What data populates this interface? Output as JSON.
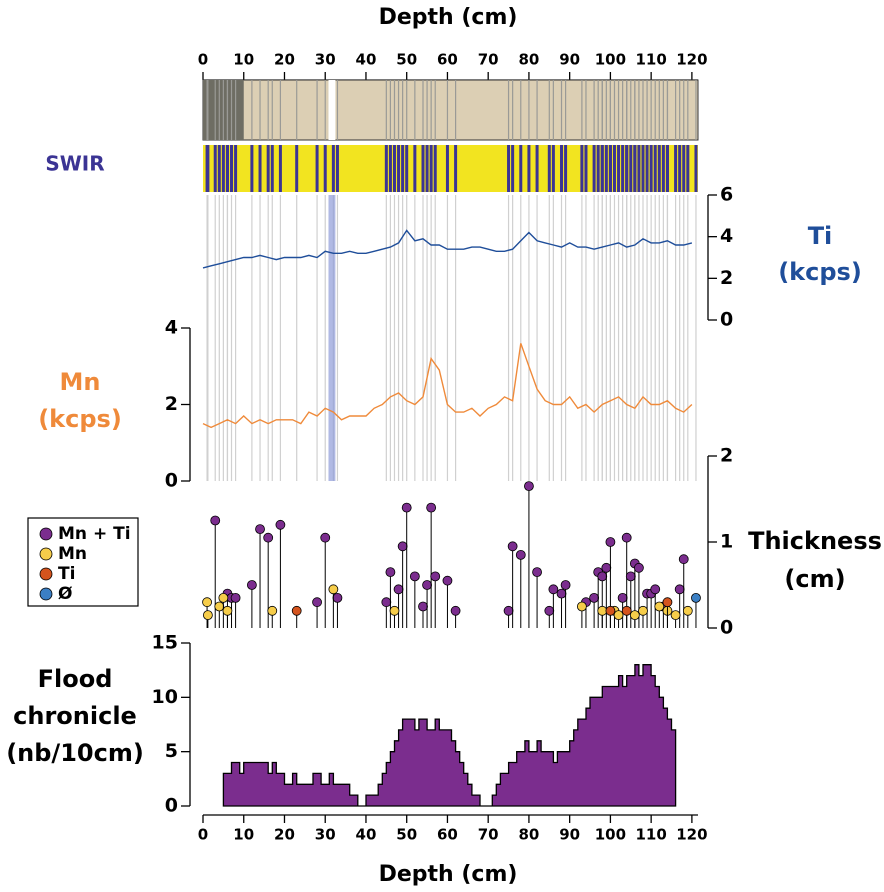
{
  "chart_data": [
    {
      "type": "core",
      "title": "Depth (cm)",
      "xlim": [
        0,
        121.5
      ],
      "xticks": [
        0,
        10,
        20,
        30,
        40,
        50,
        60,
        70,
        80,
        90,
        100,
        110,
        120
      ],
      "dark": [
        0,
        10
      ],
      "gap": [
        30.8,
        32.5
      ],
      "color": "#dccfb4",
      "dark_color": "#6e6d63",
      "line_color": "#9a9a96"
    },
    {
      "type": "swir",
      "label": [
        "SWIR"
      ],
      "color": "#f2e420",
      "stripe_color": "#3b3494"
    },
    {
      "type": "line",
      "label": [
        "Ti",
        "(kcps)"
      ],
      "side": "right",
      "color": "#1f4e9a",
      "x": [
        0,
        2,
        4,
        6,
        8,
        10,
        12,
        14,
        16,
        18,
        20,
        22,
        24,
        26,
        28,
        30,
        32,
        34,
        36,
        38,
        40,
        42,
        44,
        46,
        48,
        50,
        52,
        54,
        56,
        58,
        60,
        62,
        64,
        66,
        68,
        70,
        72,
        74,
        76,
        78,
        80,
        82,
        84,
        86,
        88,
        90,
        92,
        94,
        96,
        98,
        100,
        102,
        104,
        106,
        108,
        110,
        112,
        114,
        116,
        118,
        120
      ],
      "values": [
        2.5,
        2.6,
        2.7,
        2.8,
        2.9,
        3.0,
        3.0,
        3.1,
        3.0,
        2.9,
        3.0,
        3.0,
        3.0,
        3.1,
        3.0,
        3.3,
        3.2,
        3.2,
        3.3,
        3.2,
        3.2,
        3.3,
        3.4,
        3.5,
        3.7,
        4.3,
        3.8,
        3.9,
        3.6,
        3.6,
        3.4,
        3.4,
        3.4,
        3.5,
        3.5,
        3.4,
        3.3,
        3.3,
        3.4,
        3.8,
        4.2,
        3.8,
        3.7,
        3.6,
        3.5,
        3.7,
        3.5,
        3.5,
        3.4,
        3.5,
        3.6,
        3.7,
        3.5,
        3.6,
        3.9,
        3.7,
        3.7,
        3.8,
        3.6,
        3.6,
        3.7
      ],
      "ylim": [
        0,
        6
      ],
      "yticks": [
        0,
        2,
        4,
        6
      ]
    },
    {
      "type": "line",
      "label": [
        "Mn",
        "(kcps)"
      ],
      "side": "left",
      "color": "#ef8a3a",
      "x": [
        0,
        2,
        4,
        6,
        8,
        10,
        12,
        14,
        16,
        18,
        20,
        22,
        24,
        26,
        28,
        30,
        32,
        34,
        36,
        38,
        40,
        42,
        44,
        46,
        48,
        50,
        52,
        54,
        56,
        58,
        60,
        62,
        64,
        66,
        68,
        70,
        72,
        74,
        76,
        78,
        80,
        82,
        84,
        86,
        88,
        90,
        92,
        94,
        96,
        98,
        100,
        102,
        104,
        106,
        108,
        110,
        112,
        114,
        116,
        118,
        120
      ],
      "values": [
        1.5,
        1.4,
        1.5,
        1.6,
        1.5,
        1.7,
        1.5,
        1.6,
        1.5,
        1.6,
        1.6,
        1.6,
        1.5,
        1.8,
        1.7,
        1.9,
        1.8,
        1.6,
        1.7,
        1.7,
        1.7,
        1.9,
        2.0,
        2.2,
        2.3,
        2.1,
        2.0,
        2.2,
        3.2,
        2.9,
        2.0,
        1.8,
        1.8,
        1.9,
        1.7,
        1.9,
        2.0,
        2.2,
        2.1,
        3.6,
        3.0,
        2.4,
        2.1,
        2.0,
        2.0,
        2.2,
        1.9,
        2.0,
        1.8,
        2.0,
        2.1,
        2.2,
        2.0,
        1.9,
        2.2,
        2.0,
        2.0,
        2.1,
        1.9,
        1.8,
        2.0
      ],
      "ylim": [
        0,
        4
      ],
      "yticks": [
        0,
        2,
        4
      ]
    },
    {
      "type": "stem",
      "label": [
        "Thickness",
        "(cm)"
      ],
      "side": "right",
      "ylim": [
        0,
        2
      ],
      "yticks": [
        0,
        1,
        2
      ],
      "series": [
        {
          "name": "Mn + Ti",
          "color": "#7b2d8e",
          "x": [
            3,
            6,
            7,
            8,
            12,
            14,
            16,
            19,
            28,
            30,
            33,
            45,
            46,
            48,
            49,
            50,
            52,
            54,
            55,
            56,
            57,
            60,
            62,
            75,
            76,
            78,
            80,
            82,
            85,
            86,
            88,
            89,
            94,
            96,
            97,
            98,
            99,
            100,
            103,
            104,
            105,
            106,
            107,
            109,
            110,
            111,
            113,
            117,
            118
          ],
          "values": [
            1.25,
            0.4,
            0.35,
            0.35,
            0.5,
            1.15,
            1.05,
            1.2,
            0.3,
            1.05,
            0.35,
            0.3,
            0.65,
            0.45,
            0.95,
            1.4,
            0.6,
            0.25,
            0.5,
            1.4,
            0.6,
            0.55,
            0.2,
            0.2,
            0.95,
            0.85,
            1.65,
            0.65,
            0.2,
            0.45,
            0.4,
            0.5,
            0.3,
            0.35,
            0.65,
            0.6,
            0.7,
            1.0,
            0.35,
            1.05,
            0.6,
            0.75,
            0.7,
            0.4,
            0.4,
            0.45,
            0.25,
            0.45,
            0.8
          ]
        },
        {
          "name": "Mn",
          "color": "#f6cd4a",
          "x": [
            1,
            1.2,
            4,
            5,
            6,
            17,
            32,
            47,
            93,
            98,
            101,
            102,
            106,
            108,
            112,
            114,
            116,
            119
          ],
          "values": [
            0.3,
            0.15,
            0.25,
            0.35,
            0.2,
            0.2,
            0.45,
            0.2,
            0.25,
            0.2,
            0.2,
            0.15,
            0.15,
            0.2,
            0.25,
            0.2,
            0.15,
            0.2
          ]
        },
        {
          "name": "Ti",
          "color": "#d4541e",
          "x": [
            23,
            100,
            104,
            114
          ],
          "values": [
            0.2,
            0.2,
            0.2,
            0.3
          ]
        },
        {
          "name": "Ø",
          "color": "#3b7fc4",
          "x": [
            121
          ],
          "values": [
            0.35
          ]
        }
      ]
    },
    {
      "type": "step",
      "label": [
        "Flood",
        "chronicle",
        "(nb/10cm)"
      ],
      "side": "left",
      "color": "#7b2d8e",
      "title": "Depth (cm)",
      "xlim": [
        0,
        121.5
      ],
      "xticks": [
        0,
        10,
        20,
        30,
        40,
        50,
        60,
        70,
        80,
        90,
        100,
        110,
        120
      ],
      "x": [
        5,
        6,
        7,
        8,
        9,
        10,
        11,
        12,
        13,
        14,
        15,
        16,
        17,
        18,
        19,
        20,
        21,
        22,
        23,
        24,
        25,
        26,
        27,
        28,
        29,
        30,
        31,
        32,
        33,
        34,
        35,
        36,
        37,
        38,
        39,
        40,
        41,
        42,
        43,
        44,
        45,
        46,
        47,
        48,
        49,
        50,
        51,
        52,
        53,
        54,
        55,
        56,
        57,
        58,
        59,
        60,
        61,
        62,
        63,
        64,
        65,
        66,
        67,
        68,
        69,
        70,
        71,
        72,
        73,
        74,
        75,
        76,
        77,
        78,
        79,
        80,
        81,
        82,
        83,
        84,
        85,
        86,
        87,
        88,
        89,
        90,
        91,
        92,
        93,
        94,
        95,
        96,
        97,
        98,
        99,
        100,
        101,
        102,
        103,
        104,
        105,
        106,
        107,
        108,
        109,
        110,
        111,
        112,
        113,
        114,
        115
      ],
      "values": [
        3,
        3,
        4,
        4,
        3,
        4,
        4,
        4,
        4,
        4,
        4,
        3,
        4,
        3,
        3,
        2,
        2,
        3,
        2,
        2,
        2,
        2,
        3,
        3,
        2,
        2,
        3,
        2,
        2,
        2,
        2,
        1,
        1,
        0,
        0,
        1,
        1,
        1,
        2,
        3,
        4,
        5,
        6,
        7,
        8,
        8,
        8,
        7,
        8,
        8,
        7,
        7,
        8,
        7,
        7,
        7,
        6,
        5,
        4,
        3,
        2,
        1,
        1,
        0,
        0,
        0,
        1,
        2,
        3,
        3,
        4,
        4,
        5,
        5,
        6,
        5,
        5,
        6,
        5,
        5,
        5,
        4,
        5,
        5,
        5,
        6,
        7,
        8,
        8,
        9,
        10,
        10,
        10,
        11,
        11,
        11,
        11,
        12,
        11,
        12,
        12,
        13,
        12,
        13,
        13,
        12,
        11,
        10,
        9,
        8,
        7
      ],
      "ylim": [
        0,
        15
      ],
      "yticks": [
        0,
        5,
        10,
        15
      ]
    }
  ]
}
